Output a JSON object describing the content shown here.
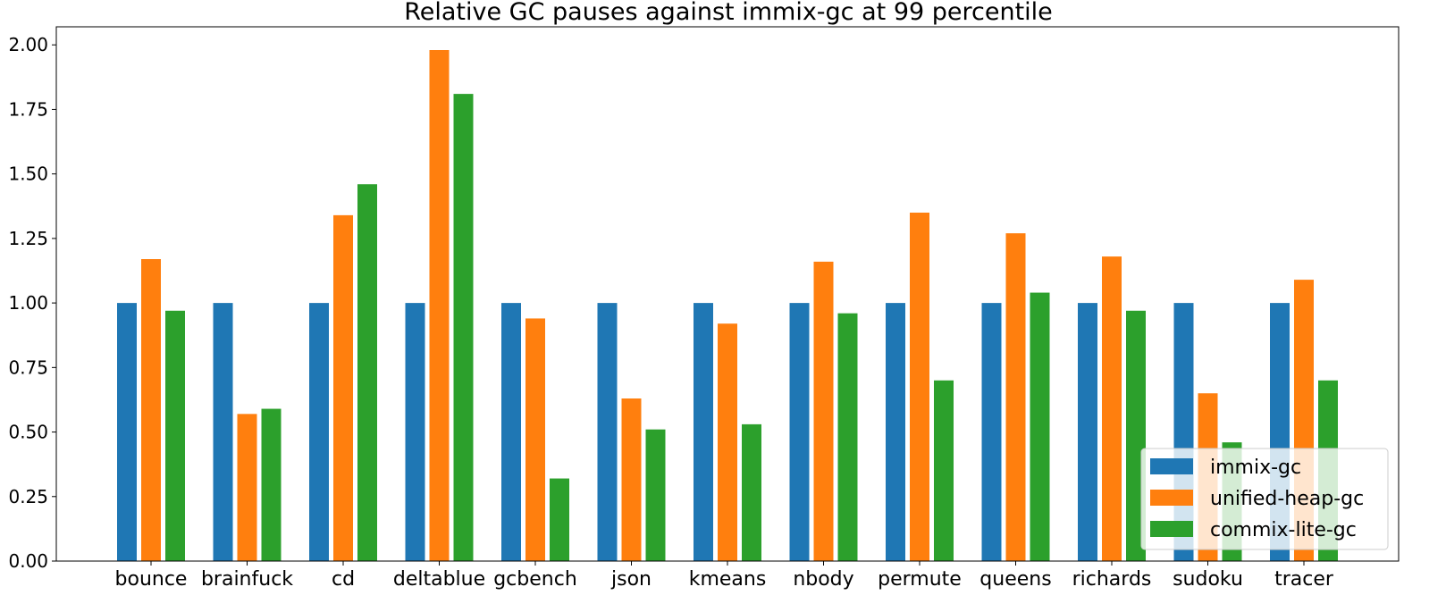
{
  "chart_data": {
    "type": "bar",
    "title": "Relative GC pauses against immix-gc at 99 percentile",
    "xlabel": "",
    "ylabel": "",
    "ylim": [
      0,
      2.07
    ],
    "yticks": [
      "0.00",
      "0.25",
      "0.50",
      "0.75",
      "1.00",
      "1.25",
      "1.50",
      "1.75",
      "2.00"
    ],
    "ytick_values": [
      0,
      0.25,
      0.5,
      0.75,
      1.0,
      1.25,
      1.5,
      1.75,
      2.0
    ],
    "grid": false,
    "legend_position": "lower-right",
    "categories": [
      "bounce",
      "brainfuck",
      "cd",
      "deltablue",
      "gcbench",
      "json",
      "kmeans",
      "nbody",
      "permute",
      "queens",
      "richards",
      "sudoku",
      "tracer"
    ],
    "series": [
      {
        "name": "immix-gc",
        "color": "#1f77b4",
        "values": [
          1.0,
          1.0,
          1.0,
          1.0,
          1.0,
          1.0,
          1.0,
          1.0,
          1.0,
          1.0,
          1.0,
          1.0,
          1.0
        ]
      },
      {
        "name": "unified-heap-gc",
        "color": "#ff7f0e",
        "values": [
          1.17,
          0.57,
          1.34,
          1.98,
          0.94,
          0.63,
          0.92,
          1.16,
          1.35,
          1.27,
          1.18,
          0.65,
          1.09
        ]
      },
      {
        "name": "commix-lite-gc",
        "color": "#2ca02c",
        "values": [
          0.97,
          0.59,
          1.46,
          1.81,
          0.32,
          0.51,
          0.53,
          0.96,
          0.7,
          1.04,
          0.97,
          0.46,
          0.7
        ]
      }
    ]
  }
}
